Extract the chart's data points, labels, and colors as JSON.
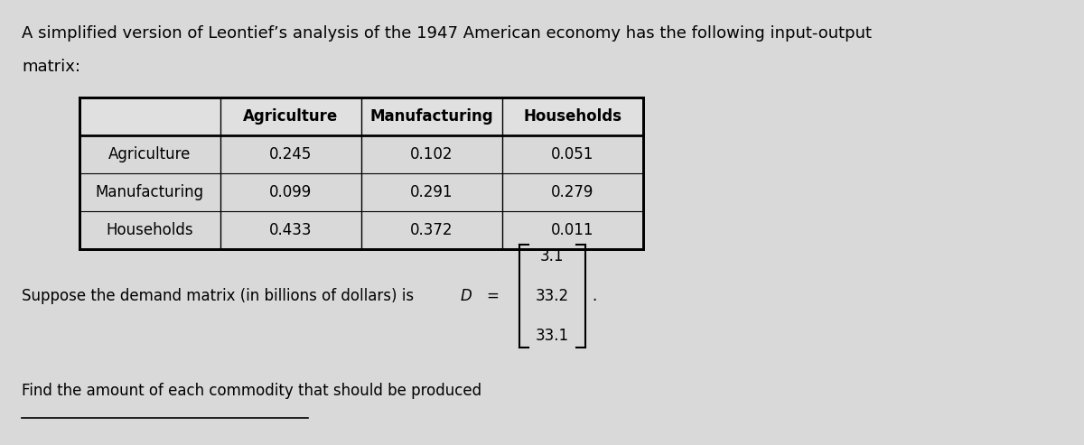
{
  "title_line1": "A simplified version of Leontief’s analysis of the 1947 American economy has the following input-output",
  "title_line2": "matrix:",
  "col_headers": [
    "Agriculture",
    "Manufacturing",
    "Households"
  ],
  "row_headers": [
    "Agriculture",
    "Manufacturing",
    "Households"
  ],
  "table_data": [
    [
      "0.245",
      "0.102",
      "0.051"
    ],
    [
      "0.099",
      "0.291",
      "0.279"
    ],
    [
      "0.433",
      "0.372",
      "0.011"
    ]
  ],
  "demand_text": "Suppose the demand matrix (in billions of dollars) is ",
  "demand_var": "D",
  "demand_values": [
    "3.1",
    "33.2",
    "33.1"
  ],
  "footer_text": "Find the amount of each commodity that should be produced",
  "bg_color": "#d9d9d9",
  "text_color": "#000000",
  "font_size_title": 13,
  "font_size_table": 12,
  "font_size_body": 12
}
